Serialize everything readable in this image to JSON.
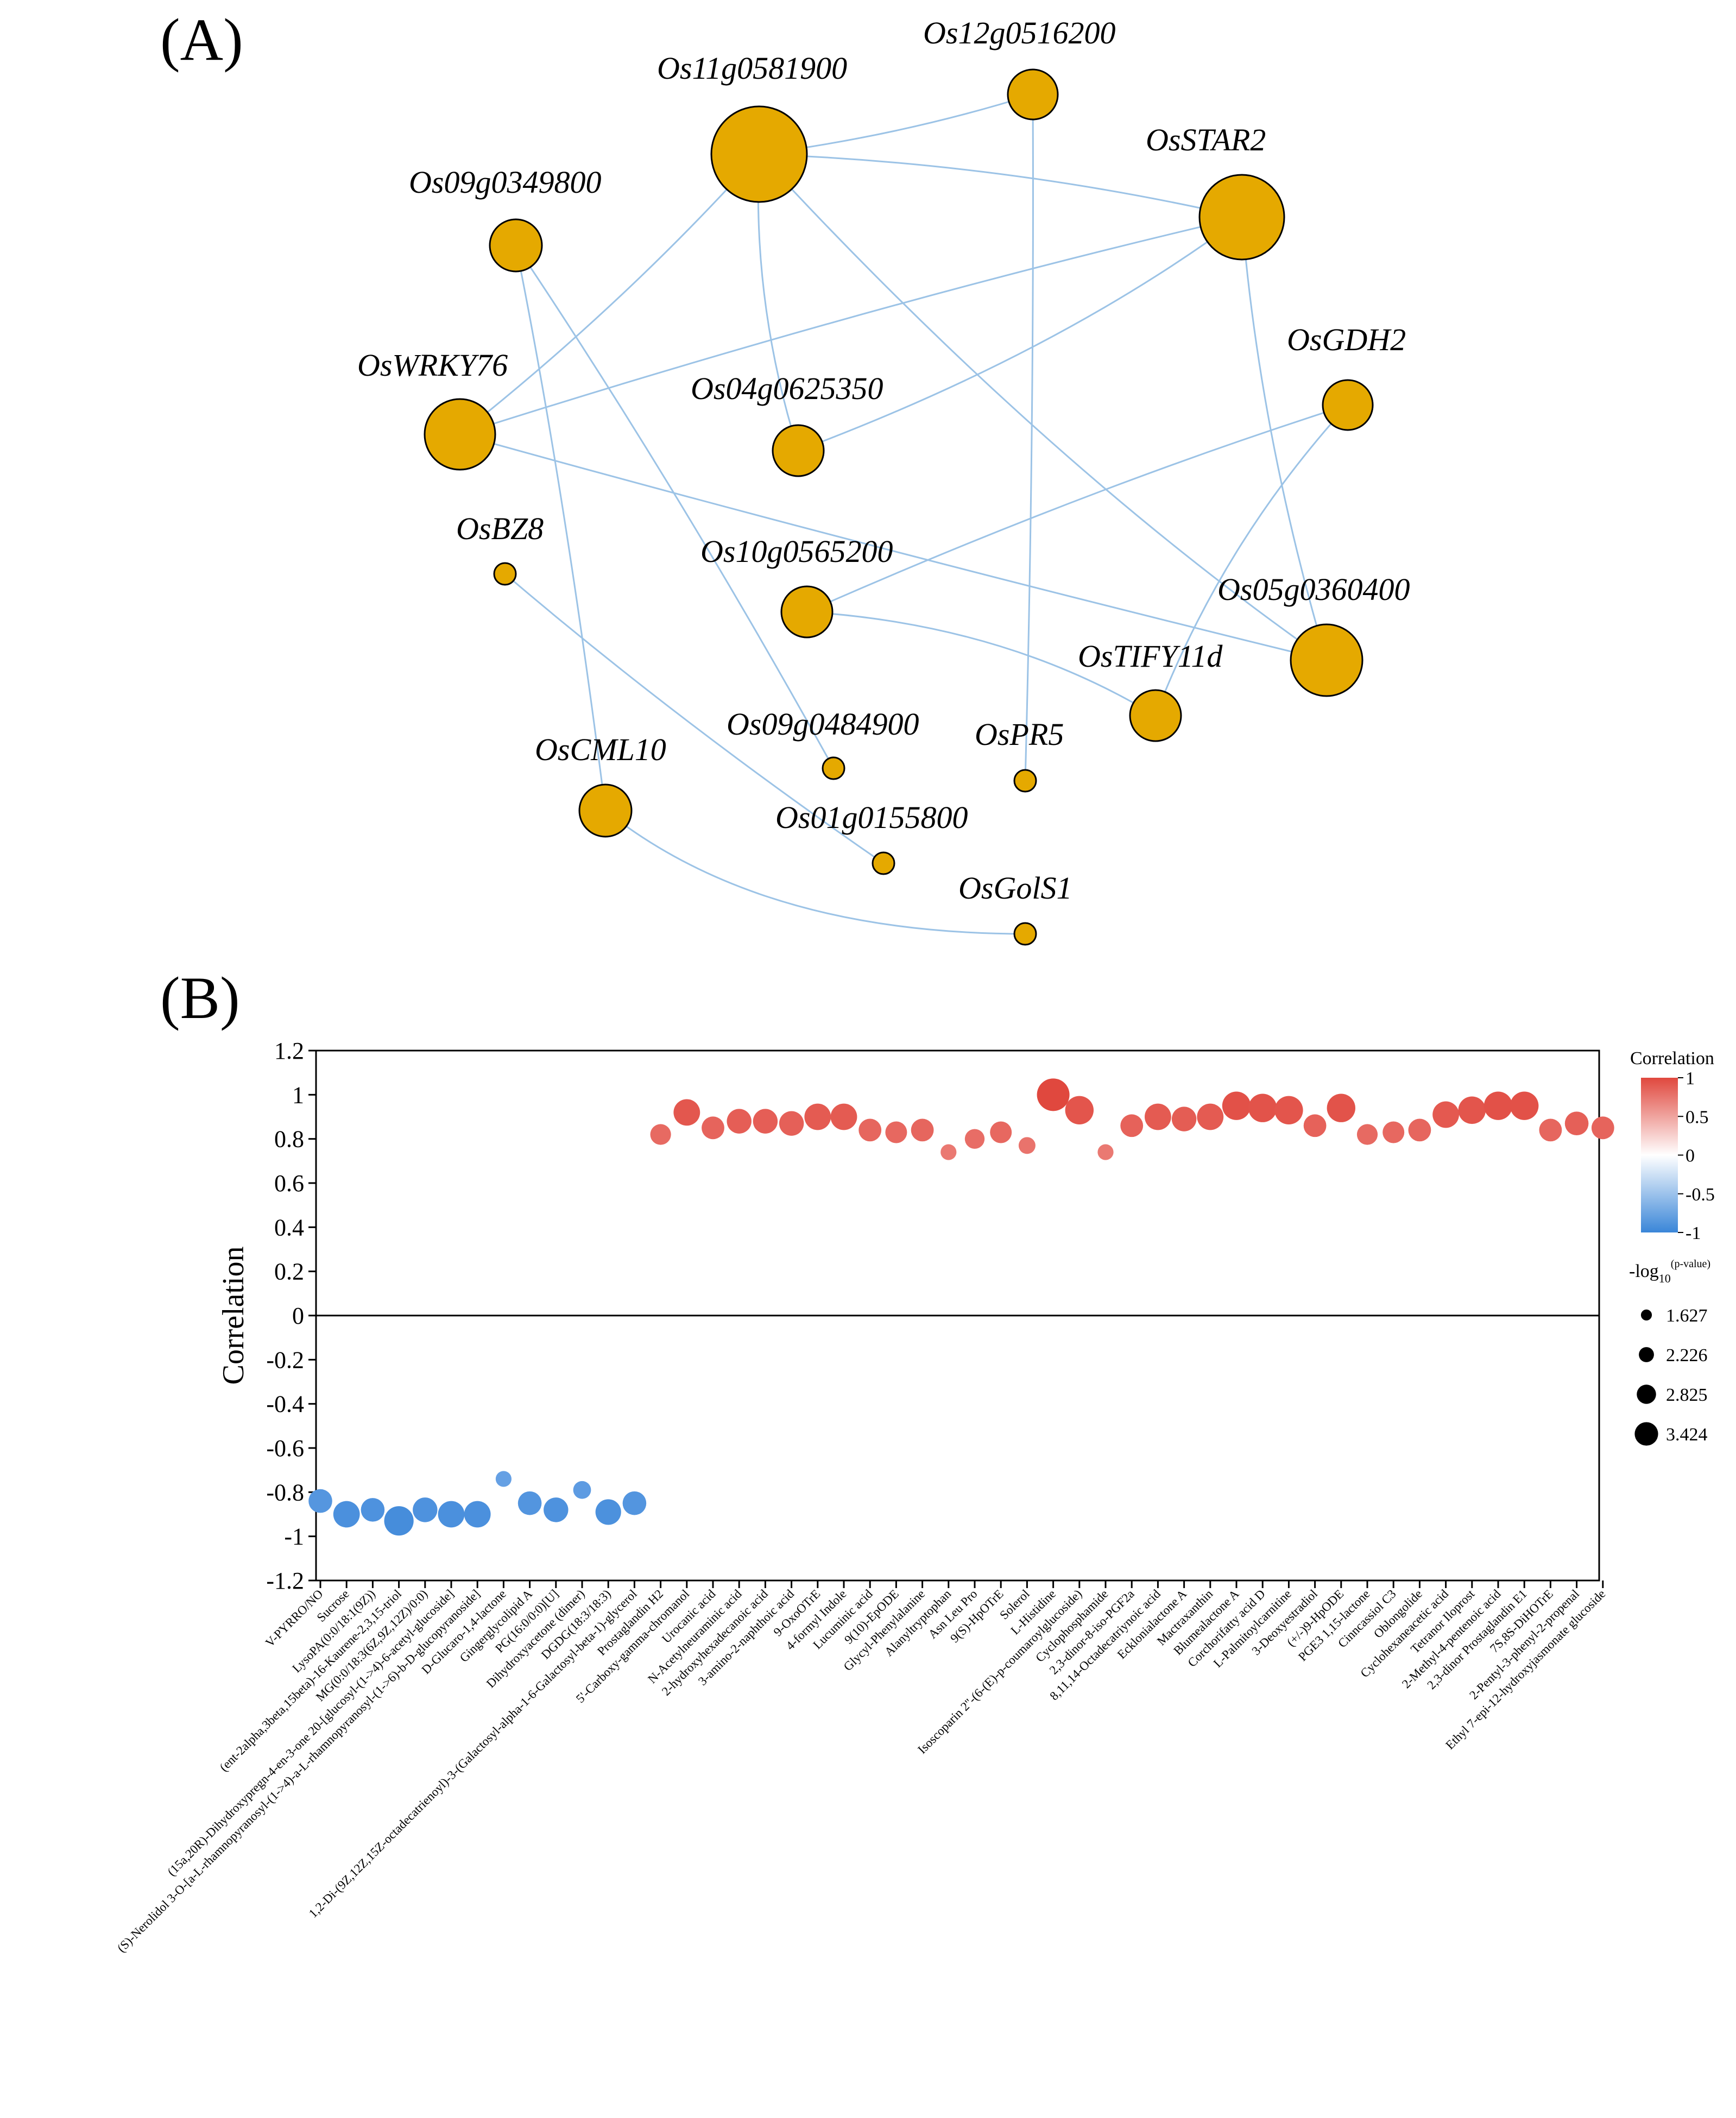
{
  "panel_a": {
    "label": "(A)",
    "node_color": "#E5A900",
    "edge_color": "#9CC3E6",
    "nodes": [
      {
        "id": "Os11g0581900",
        "label": "Os11g0581900",
        "size": 3.0
      },
      {
        "id": "Os12g0516200",
        "label": "Os12g0516200",
        "size": 1.0
      },
      {
        "id": "OsSTAR2",
        "label": "OsSTAR2",
        "size": 2.5
      },
      {
        "id": "Os09g0349800",
        "label": "Os09g0349800",
        "size": 1.0
      },
      {
        "id": "OsWRKY76",
        "label": "OsWRKY76",
        "size": 2.0
      },
      {
        "id": "Os04g0625350",
        "label": "Os04g0625350",
        "size": 1.0
      },
      {
        "id": "OsGDH2",
        "label": "OsGDH2",
        "size": 1.0
      },
      {
        "id": "OsBZ8",
        "label": "OsBZ8",
        "size": 0.4
      },
      {
        "id": "Os10g0565200",
        "label": "Os10g0565200",
        "size": 1.0
      },
      {
        "id": "Os05g0360400",
        "label": "Os05g0360400",
        "size": 2.0
      },
      {
        "id": "OsTIFY11d",
        "label": "OsTIFY11d",
        "size": 1.0
      },
      {
        "id": "Os09g0484900",
        "label": "Os09g0484900",
        "size": 0.4
      },
      {
        "id": "OsPR5",
        "label": "OsPR5",
        "size": 0.4
      },
      {
        "id": "OsCML10",
        "label": "OsCML10",
        "size": 1.0
      },
      {
        "id": "Os01g0155800",
        "label": "Os01g0155800",
        "size": 0.4
      },
      {
        "id": "OsGolS1",
        "label": "OsGolS1",
        "size": 0.4
      }
    ],
    "edges": [
      [
        "Os11g0581900",
        "Os12g0516200"
      ],
      [
        "Os11g0581900",
        "OsSTAR2"
      ],
      [
        "Os11g0581900",
        "OsWRKY76"
      ],
      [
        "Os11g0581900",
        "Os04g0625350"
      ],
      [
        "Os11g0581900",
        "Os05g0360400"
      ],
      [
        "Os12g0516200",
        "OsPR5"
      ],
      [
        "OsSTAR2",
        "OsWRKY76"
      ],
      [
        "OsSTAR2",
        "Os04g0625350"
      ],
      [
        "OsSTAR2",
        "Os05g0360400"
      ],
      [
        "Os09g0349800",
        "OsCML10"
      ],
      [
        "Os09g0349800",
        "Os09g0484900"
      ],
      [
        "OsWRKY76",
        "Os05g0360400"
      ],
      [
        "OsGDH2",
        "Os10g0565200"
      ],
      [
        "OsGDH2",
        "OsTIFY11d"
      ],
      [
        "Os10g0565200",
        "OsTIFY11d"
      ],
      [
        "OsBZ8",
        "Os01g0155800"
      ],
      [
        "OsCML10",
        "OsGolS1"
      ]
    ]
  },
  "panel_b": {
    "label": "(B)",
    "legend_title": "Correlation",
    "colorbar_ticks": [
      "1",
      "0.5",
      "0",
      "-0.5",
      "-1"
    ],
    "size_legend_title": "-log",
    "size_legend_sub": "10",
    "size_legend_sup": "(p-value)",
    "size_legend_values": [
      "1.627",
      "2.226",
      "2.825",
      "3.424"
    ],
    "neg_color": "#3A86D8",
    "pos_color": "#E0483E"
  },
  "chart_data": {
    "type": "scatter",
    "title": "",
    "xlabel": "",
    "ylabel": "Correlation",
    "ylim": [
      -1.2,
      1.2
    ],
    "yticks": [
      "1.2",
      "1",
      "0.8",
      "0.6",
      "0.4",
      "0.2",
      "0",
      "-0.2",
      "-0.4",
      "-0.6",
      "-0.8",
      "-1",
      "-1.2"
    ],
    "categories": [
      "V-PYRRO/NO",
      "Sucrose",
      "LysoPA(0:0/18:1(9Z))",
      "(ent-2alpha,3beta,15beta)-16-Kaurene-2,3,15-triol",
      "MG(0:0/18:3(6Z,9Z,12Z)/0:0)",
      "(15a,20R)-Dihydroxypregn-4-en-3-one 20-[glucosyl-(1->4)-6-acetyl-glucoside]",
      "(S)-Nerolidol 3-O-[a-L-rhamnopyranosyl-(1->4)-a-L-rhamnopyranosyl-(1->6)-b-D-glucopyranoside]",
      "D-Glucaro-1,4-lactone",
      "Gingerglycolipid A",
      "PG(16:0/0:0)[U]",
      "Dihydroxyacetone (dimer)",
      "DGDG(18:3/18:3)",
      "1,2-Di-(9Z,12Z,15Z-octadecatrienoyl)-3-(Galactosyl-alpha-1-6-Galactosyl-beta-1)-glycerol",
      "Prostaglandin H2",
      "5'-Carboxy-gamma-chromanol",
      "Urocanic acid",
      "N-Acetylneuraminic acid",
      "2-hydroxyhexadecanoic acid",
      "3-amino-2-naphthoic acid",
      "9-OxoOTrE",
      "4-formyl Indole",
      "Lucuminic acid",
      "9(10)-EpODE",
      "Glycyl-Phenylalanine",
      "Alanyltryptophan",
      "Asn Leu Pro",
      "9(S)-HpOTrE",
      "Solerol",
      "L-Histidine",
      "Isoscoparin 2''-(6-(E)-p-coumaroylglucoside)",
      "Cyclophosphamide",
      "2,3-dinor-8-iso-PGF2a",
      "8,11,14-Octadecatriynoic acid",
      "Ecklonialactone A",
      "Mactraxanthin",
      "Blumealactone A",
      "Corchorifatty acid D",
      "L-Palmitoylcarnitine",
      "3-Deoxyestradiol",
      "(+/-)9-HpODE",
      "PGE3 1,15-lactone",
      "Cinncassiol C3",
      "Oblongolide",
      "Cyclohexaneacetic acid",
      "Tetranor Iloprost",
      "2-Methyl-4-pentenoic acid",
      "2,3-dinor Prostaglandin E1",
      "7S,8S-DiHOTrE",
      "2-Pentyl-3-phenyl-2-propenal",
      "Ethyl 7-epi-12-hydroxyjasmonate glucoside"
    ],
    "values": [
      -0.84,
      -0.9,
      -0.88,
      -0.93,
      -0.88,
      -0.9,
      -0.9,
      -0.74,
      -0.85,
      -0.88,
      -0.79,
      -0.89,
      -0.85,
      0.82,
      0.92,
      0.85,
      0.88,
      0.88,
      0.87,
      0.9,
      0.9,
      0.84,
      0.83,
      0.84,
      0.74,
      0.8,
      0.83,
      0.77,
      1.0,
      0.93,
      0.74,
      0.86,
      0.9,
      0.89,
      0.9,
      0.95,
      0.94,
      0.93,
      0.86,
      0.94,
      0.82,
      0.83,
      0.84,
      0.91,
      0.93,
      0.95,
      0.95,
      0.84,
      0.87,
      0.85
    ],
    "neglog10p": [
      2.5,
      2.8,
      2.5,
      3.1,
      2.6,
      2.8,
      2.8,
      1.7,
      2.5,
      2.6,
      1.9,
      2.7,
      2.5,
      2.2,
      2.8,
      2.4,
      2.6,
      2.6,
      2.6,
      2.8,
      2.8,
      2.4,
      2.3,
      2.4,
      1.7,
      2.1,
      2.3,
      1.8,
      3.42,
      3.0,
      1.7,
      2.4,
      2.8,
      2.6,
      2.8,
      3.0,
      3.0,
      3.0,
      2.4,
      3.0,
      2.2,
      2.3,
      2.4,
      2.8,
      2.9,
      3.0,
      3.0,
      2.4,
      2.5,
      2.4
    ],
    "size_legend": [
      1.627,
      2.226,
      2.825,
      3.424
    ],
    "color_range": [
      -1,
      1
    ],
    "legend_position": "top-right"
  }
}
